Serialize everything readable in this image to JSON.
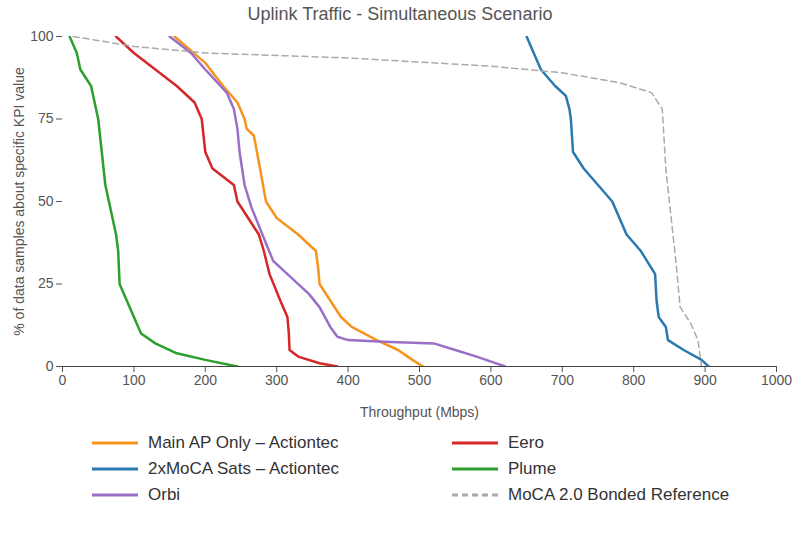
{
  "chart_data": {
    "type": "line",
    "title": "Uplink Traffic - Simultaneous Scenario",
    "x_label": "Throughput (Mbps)",
    "y_label": "% of data samples about specific KPI value",
    "xlim": [
      0,
      1000
    ],
    "xticks": [
      0,
      100,
      200,
      300,
      400,
      500,
      600,
      700,
      800,
      900,
      1000
    ],
    "ylim": [
      0,
      100
    ],
    "yticks": [
      0,
      25,
      50,
      75,
      100
    ],
    "grid": false,
    "legend": "bottom",
    "series": [
      {
        "name": "Main AP Only – Actiontec",
        "color": "#f7931e",
        "line_style": "solid",
        "x": [
          157,
          200,
          225,
          245,
          255,
          258,
          268,
          275,
          285,
          300,
          330,
          355,
          358,
          360,
          375,
          390,
          405,
          440,
          470,
          490,
          505
        ],
        "values": [
          100,
          92,
          85,
          80,
          75,
          72,
          70,
          62,
          50,
          45,
          40,
          35,
          30,
          25,
          20,
          15,
          12,
          8,
          5,
          2,
          0
        ]
      },
      {
        "name": "2xMoCA Sats – Actiontec",
        "color": "#2a7ab0",
        "line_style": "solid",
        "x": [
          650,
          660,
          670,
          690,
          705,
          710,
          712,
          715,
          730,
          750,
          770,
          790,
          810,
          830,
          832,
          835,
          845,
          848,
          870,
          895,
          905
        ],
        "values": [
          100,
          95,
          90,
          85,
          82,
          78,
          75,
          65,
          60,
          55,
          50,
          40,
          35,
          28,
          20,
          15,
          12,
          8,
          5,
          2,
          0
        ]
      },
      {
        "name": "Orbi",
        "color": "#9b6fc6",
        "line_style": "solid",
        "x": [
          150,
          180,
          200,
          230,
          240,
          245,
          248,
          255,
          265,
          280,
          295,
          320,
          345,
          360,
          375,
          385,
          400,
          450,
          520,
          550,
          580,
          620
        ],
        "values": [
          100,
          95,
          90,
          83,
          78,
          72,
          65,
          55,
          48,
          40,
          32,
          27,
          22,
          18,
          12,
          9,
          8,
          7.5,
          7,
          5,
          3,
          0
        ]
      },
      {
        "name": "Eero",
        "color": "#d62728",
        "line_style": "solid",
        "x": [
          75,
          100,
          130,
          160,
          185,
          195,
          200,
          210,
          240,
          245,
          260,
          275,
          282,
          290,
          305,
          315,
          317,
          318,
          330,
          360,
          385
        ],
        "values": [
          100,
          95,
          90,
          85,
          80,
          75,
          65,
          60,
          55,
          50,
          45,
          40,
          35,
          28,
          20,
          15,
          10,
          5,
          3,
          1,
          0
        ]
      },
      {
        "name": "Plume",
        "color": "#2ca02c",
        "line_style": "solid",
        "x": [
          10,
          20,
          25,
          40,
          45,
          50,
          55,
          60,
          70,
          75,
          78,
          80,
          90,
          100,
          110,
          130,
          160,
          200,
          245
        ],
        "values": [
          100,
          95,
          90,
          85,
          80,
          75,
          65,
          55,
          45,
          40,
          35,
          25,
          20,
          15,
          10,
          7,
          4,
          2,
          0
        ]
      },
      {
        "name": "MoCA 2.0 Bonded Reference",
        "color": "#aaaaaa",
        "line_style": "dashed",
        "x": [
          15,
          100,
          200,
          400,
          600,
          700,
          780,
          825,
          840,
          845,
          850,
          860,
          865,
          880,
          890,
          895
        ],
        "values": [
          100,
          97,
          95,
          93.5,
          91,
          89,
          86,
          83,
          78,
          60,
          50,
          30,
          18,
          13,
          8,
          0
        ]
      }
    ]
  }
}
